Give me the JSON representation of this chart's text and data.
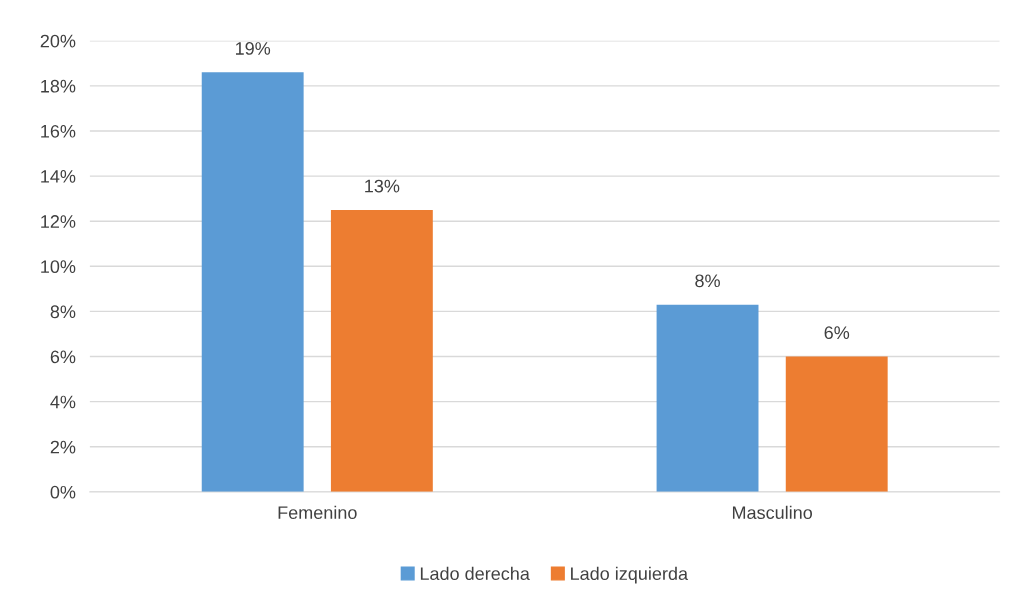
{
  "chart_data": {
    "type": "bar",
    "categories": [
      "Femenino",
      "Masculino"
    ],
    "series": [
      {
        "name": "Lado derecha",
        "color": "#5b9bd5",
        "values": [
          18.6,
          8.3
        ],
        "value_labels": [
          "19%",
          "8%"
        ]
      },
      {
        "name": "Lado izquierda",
        "color": "#ed7d31",
        "values": [
          12.5,
          6.0
        ],
        "value_labels": [
          "13%",
          "6%"
        ]
      }
    ],
    "ylim": [
      0,
      20
    ],
    "yticks": [
      {
        "value": 0,
        "label": "0%"
      },
      {
        "value": 2,
        "label": "2%"
      },
      {
        "value": 4,
        "label": "4%"
      },
      {
        "value": 6,
        "label": "6%"
      },
      {
        "value": 8,
        "label": "8%"
      },
      {
        "value": 10,
        "label": "10%"
      },
      {
        "value": 12,
        "label": "12%"
      },
      {
        "value": 14,
        "label": "14%"
      },
      {
        "value": 16,
        "label": "16%"
      },
      {
        "value": 18,
        "label": "18%"
      },
      {
        "value": 20,
        "label": "20%"
      }
    ],
    "grid": "y",
    "legend": "bottom"
  }
}
